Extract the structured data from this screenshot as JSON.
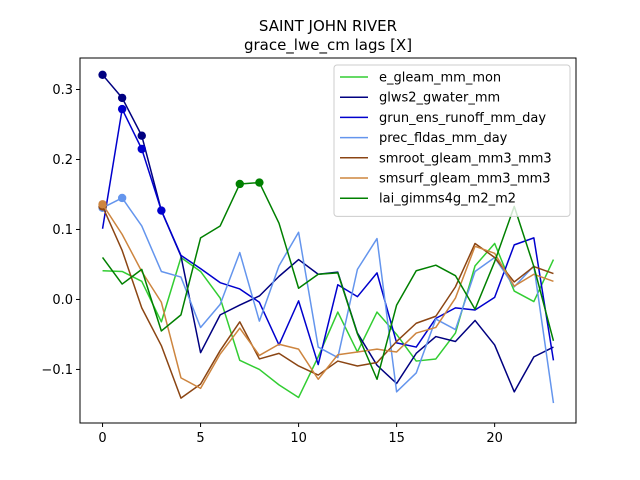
{
  "chart_data": {
    "type": "line",
    "title": "SAINT JOHN RIVER",
    "subtitle": "grace_lwe_cm lags [X]",
    "xlabel": "",
    "ylabel": "",
    "xlim": [
      -1.15,
      24.15
    ],
    "ylim": [
      -0.1765,
      0.345
    ],
    "x_ticks": [
      0,
      5,
      10,
      15,
      20
    ],
    "y_ticks": [
      -0.1,
      0.0,
      0.1,
      0.2,
      0.3
    ],
    "x_tick_labels": [
      "0",
      "5",
      "10",
      "15",
      "20"
    ],
    "y_tick_labels": [
      "−0.1",
      "0.0",
      "0.1",
      "0.2",
      "0.3"
    ],
    "legend_position": "top-right",
    "grid": false,
    "x": [
      0,
      1,
      2,
      3,
      4,
      5,
      6,
      7,
      8,
      9,
      10,
      11,
      12,
      13,
      14,
      15,
      16,
      17,
      18,
      19,
      20,
      21,
      22,
      23
    ],
    "series": [
      {
        "name": "e_gleam_mm_mon",
        "color": "#32cd32",
        "values": [
          0.041,
          0.04,
          0.026,
          -0.032,
          0.06,
          0.04,
          0.002,
          -0.087,
          -0.1,
          -0.122,
          -0.14,
          -0.082,
          -0.018,
          -0.075,
          -0.018,
          -0.05,
          -0.088,
          -0.085,
          -0.048,
          0.048,
          0.08,
          0.012,
          -0.003,
          0.057
        ],
        "markers": []
      },
      {
        "name": "glws2_gwater_mm",
        "color": "#000080",
        "values": [
          0.321,
          0.288,
          0.234,
          0.127,
          0.062,
          -0.076,
          -0.022,
          -0.008,
          0.005,
          0.033,
          0.057,
          0.036,
          0.039,
          -0.048,
          -0.094,
          -0.12,
          -0.077,
          -0.053,
          -0.06,
          -0.03,
          -0.065,
          -0.132,
          -0.082,
          -0.068
        ],
        "markers": [
          0,
          1,
          2
        ]
      },
      {
        "name": "grun_ens_runoff_mm_day",
        "color": "#0000cd",
        "values": [
          0.101,
          0.272,
          0.215,
          0.127,
          0.063,
          0.044,
          0.024,
          0.015,
          -0.004,
          -0.065,
          -0.002,
          -0.093,
          0.021,
          0.004,
          0.038,
          -0.062,
          -0.068,
          -0.027,
          -0.012,
          -0.015,
          0.003,
          0.078,
          0.088,
          -0.087
        ],
        "markers": [
          1,
          2,
          3
        ]
      },
      {
        "name": "prec_fldas_mm_day",
        "color": "#6495ed",
        "values": [
          0.131,
          0.145,
          0.105,
          0.04,
          0.032,
          -0.04,
          -0.007,
          0.067,
          -0.031,
          0.048,
          0.096,
          -0.068,
          -0.083,
          0.043,
          0.087,
          -0.132,
          -0.105,
          -0.028,
          -0.043,
          0.04,
          0.06,
          0.018,
          0.048,
          -0.148
        ],
        "markers": [
          0,
          1
        ]
      },
      {
        "name": "smroot_gleam_mm3_mm3",
        "color": "#8b4513",
        "values": [
          0.133,
          0.07,
          -0.012,
          -0.066,
          -0.141,
          -0.121,
          -0.073,
          -0.032,
          -0.085,
          -0.077,
          -0.095,
          -0.108,
          -0.088,
          -0.095,
          -0.09,
          -0.06,
          -0.034,
          -0.024,
          0.018,
          0.08,
          0.06,
          0.025,
          0.047,
          0.037
        ],
        "markers": [
          0
        ]
      },
      {
        "name": "smsurf_gleam_mm3_mm3",
        "color": "#cd853f",
        "values": [
          0.136,
          0.093,
          0.04,
          -0.004,
          -0.112,
          -0.127,
          -0.078,
          -0.041,
          -0.08,
          -0.064,
          -0.071,
          -0.114,
          -0.079,
          -0.075,
          -0.071,
          -0.075,
          -0.048,
          -0.04,
          0.002,
          0.076,
          0.066,
          0.019,
          0.036,
          0.026
        ],
        "markers": [
          0
        ]
      },
      {
        "name": "lai_gimms4g_m2_m2",
        "color": "#008000",
        "values": [
          0.06,
          0.022,
          0.043,
          -0.045,
          -0.022,
          0.088,
          0.105,
          0.165,
          0.167,
          0.109,
          0.016,
          0.036,
          0.038,
          -0.049,
          -0.114,
          -0.008,
          0.041,
          0.049,
          0.034,
          -0.014,
          0.054,
          0.133,
          0.047,
          -0.059
        ],
        "markers": [
          7,
          8
        ]
      }
    ]
  }
}
